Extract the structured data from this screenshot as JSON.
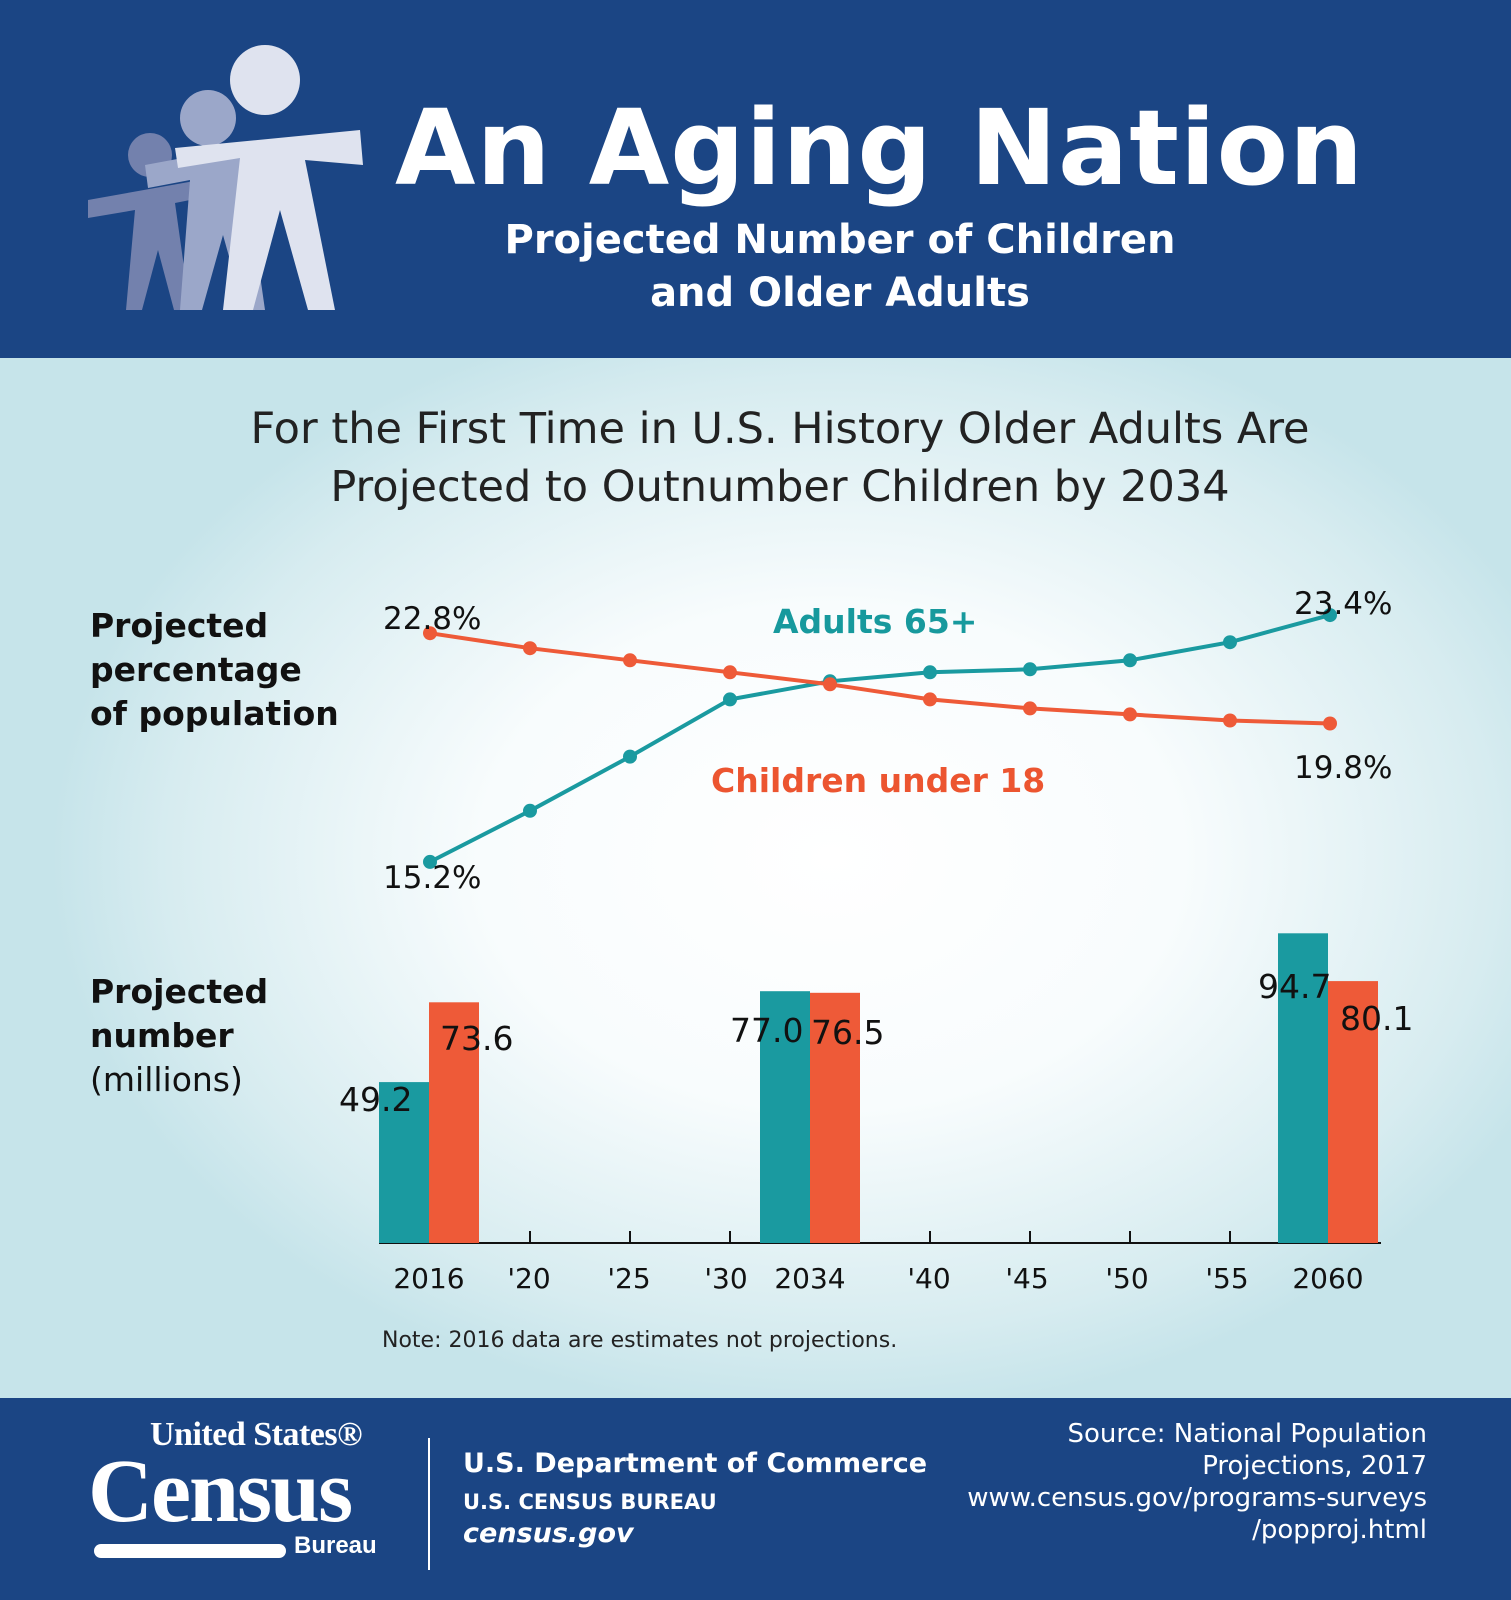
{
  "header": {
    "title": "An Aging Nation",
    "subtitle_line1": "Projected Number of Children",
    "subtitle_line2": "and Older Adults",
    "icon": "people-figures-icon"
  },
  "headline": {
    "line1": "For the First Time in U.S. History Older Adults Are",
    "line2": "Projected to Outnumber Children by 2034"
  },
  "line_section_label": {
    "line1": "Projected",
    "line2": "percentage",
    "line3": "of population"
  },
  "bar_section_label": {
    "line1": "Projected",
    "line2": "number",
    "line3": "(millions)"
  },
  "note": "Note: 2016 data are estimates not projections.",
  "colors": {
    "header_bg": "#1b4584",
    "adults": "#1a9aa0",
    "children": "#ee5a38",
    "label_adults": "#17999d",
    "label_children": "#ec5530"
  },
  "chart_data": [
    {
      "type": "line",
      "x": [
        "2016",
        "'20",
        "'25",
        "'30",
        "2034",
        "'40",
        "'45",
        "'50",
        "'55",
        "2060"
      ],
      "series": [
        {
          "name": "Adults 65+",
          "values": [
            15.2,
            16.9,
            18.7,
            20.6,
            21.2,
            21.5,
            21.6,
            21.9,
            22.5,
            23.4
          ],
          "labels": [
            "15.2%",
            null,
            null,
            null,
            null,
            null,
            null,
            null,
            null,
            "23.4%"
          ]
        },
        {
          "name": "Children under 18",
          "values": [
            22.8,
            22.3,
            21.9,
            21.5,
            21.1,
            20.6,
            20.3,
            20.1,
            19.9,
            19.8
          ],
          "labels": [
            "22.8%",
            null,
            null,
            null,
            null,
            null,
            null,
            null,
            null,
            "19.8%"
          ]
        }
      ],
      "ylim": [
        14.6,
        24.4
      ]
    },
    {
      "type": "bar",
      "categories": [
        "2016",
        "2034",
        "2060"
      ],
      "axis_ticks": [
        "2016",
        "'20",
        "'25",
        "'30",
        "2034",
        "'40",
        "'45",
        "'50",
        "'55",
        "2060"
      ],
      "series": [
        {
          "name": "Adults 65+",
          "values": [
            49.2,
            77.0,
            94.7
          ],
          "labels": [
            "49.2",
            "77.0",
            "94.7"
          ]
        },
        {
          "name": "Children under 18",
          "values": [
            73.6,
            76.5,
            80.1
          ],
          "labels": [
            "73.6",
            "76.5",
            "80.1"
          ]
        }
      ],
      "ylim": [
        0,
        100
      ]
    }
  ],
  "footer": {
    "logo_top": "United States®",
    "logo_main": "Census",
    "logo_bureau": "Bureau",
    "dept": "U.S. Department of Commerce",
    "bureau": "U.S. CENSUS BUREAU",
    "site": "census.gov",
    "source_line1": "Source: National Population",
    "source_line2": "Projections, 2017",
    "source_line3": "www.census.gov/programs-surveys",
    "source_line4": "/popproj.html"
  }
}
